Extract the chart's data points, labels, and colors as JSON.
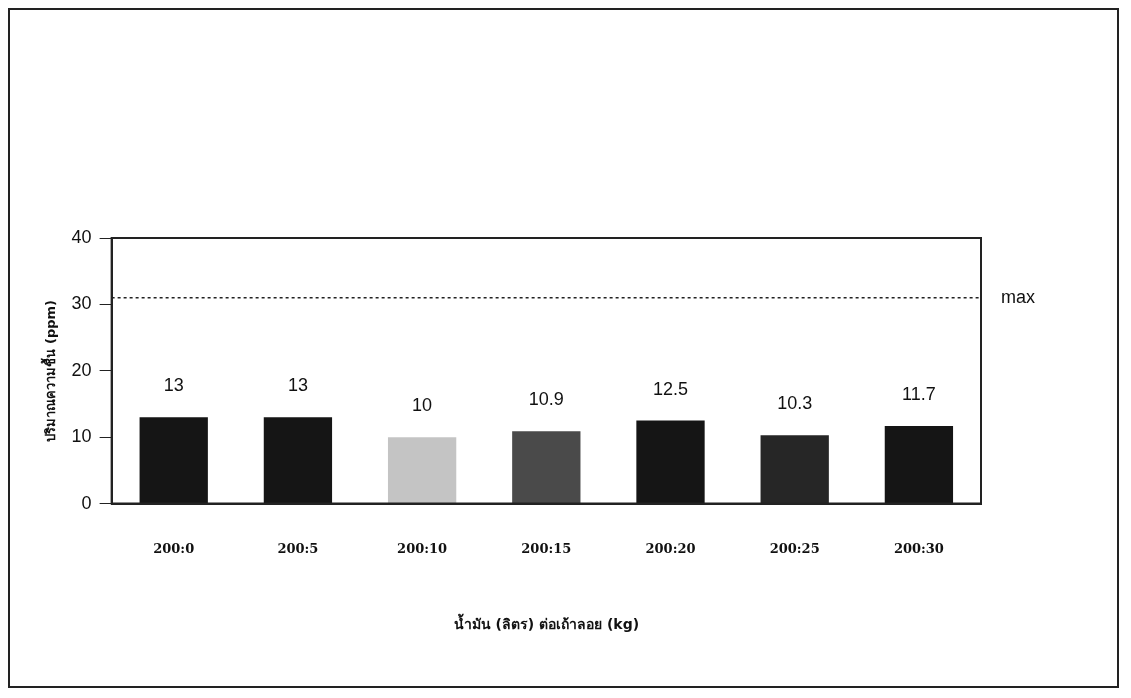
{
  "chart_data": {
    "type": "bar",
    "categories": [
      "200:0",
      "200:5",
      "200:10",
      "200:15",
      "200:20",
      "200:25",
      "200:30"
    ],
    "values": [
      13,
      13,
      10,
      10.9,
      12.5,
      10.3,
      11.7
    ],
    "colors": [
      "#151515",
      "#151515",
      "#c4c4c4",
      "#4a4a4a",
      "#151515",
      "#262626",
      "#151515"
    ],
    "xlabel": "น้ำมัน (ลิตร) ต่อเถ้าลอย (kg)",
    "ylabel": "ปริมาณความชื้น (ppm)",
    "ylim": [
      0,
      40
    ],
    "yticks": [
      0,
      10,
      20,
      30,
      40
    ],
    "ref_lines": [
      {
        "axis": "y",
        "value": 31,
        "label": "max",
        "color": "#222222",
        "line_style": "dotted"
      }
    ],
    "data_labels": true,
    "grid": false,
    "legend": false
  }
}
